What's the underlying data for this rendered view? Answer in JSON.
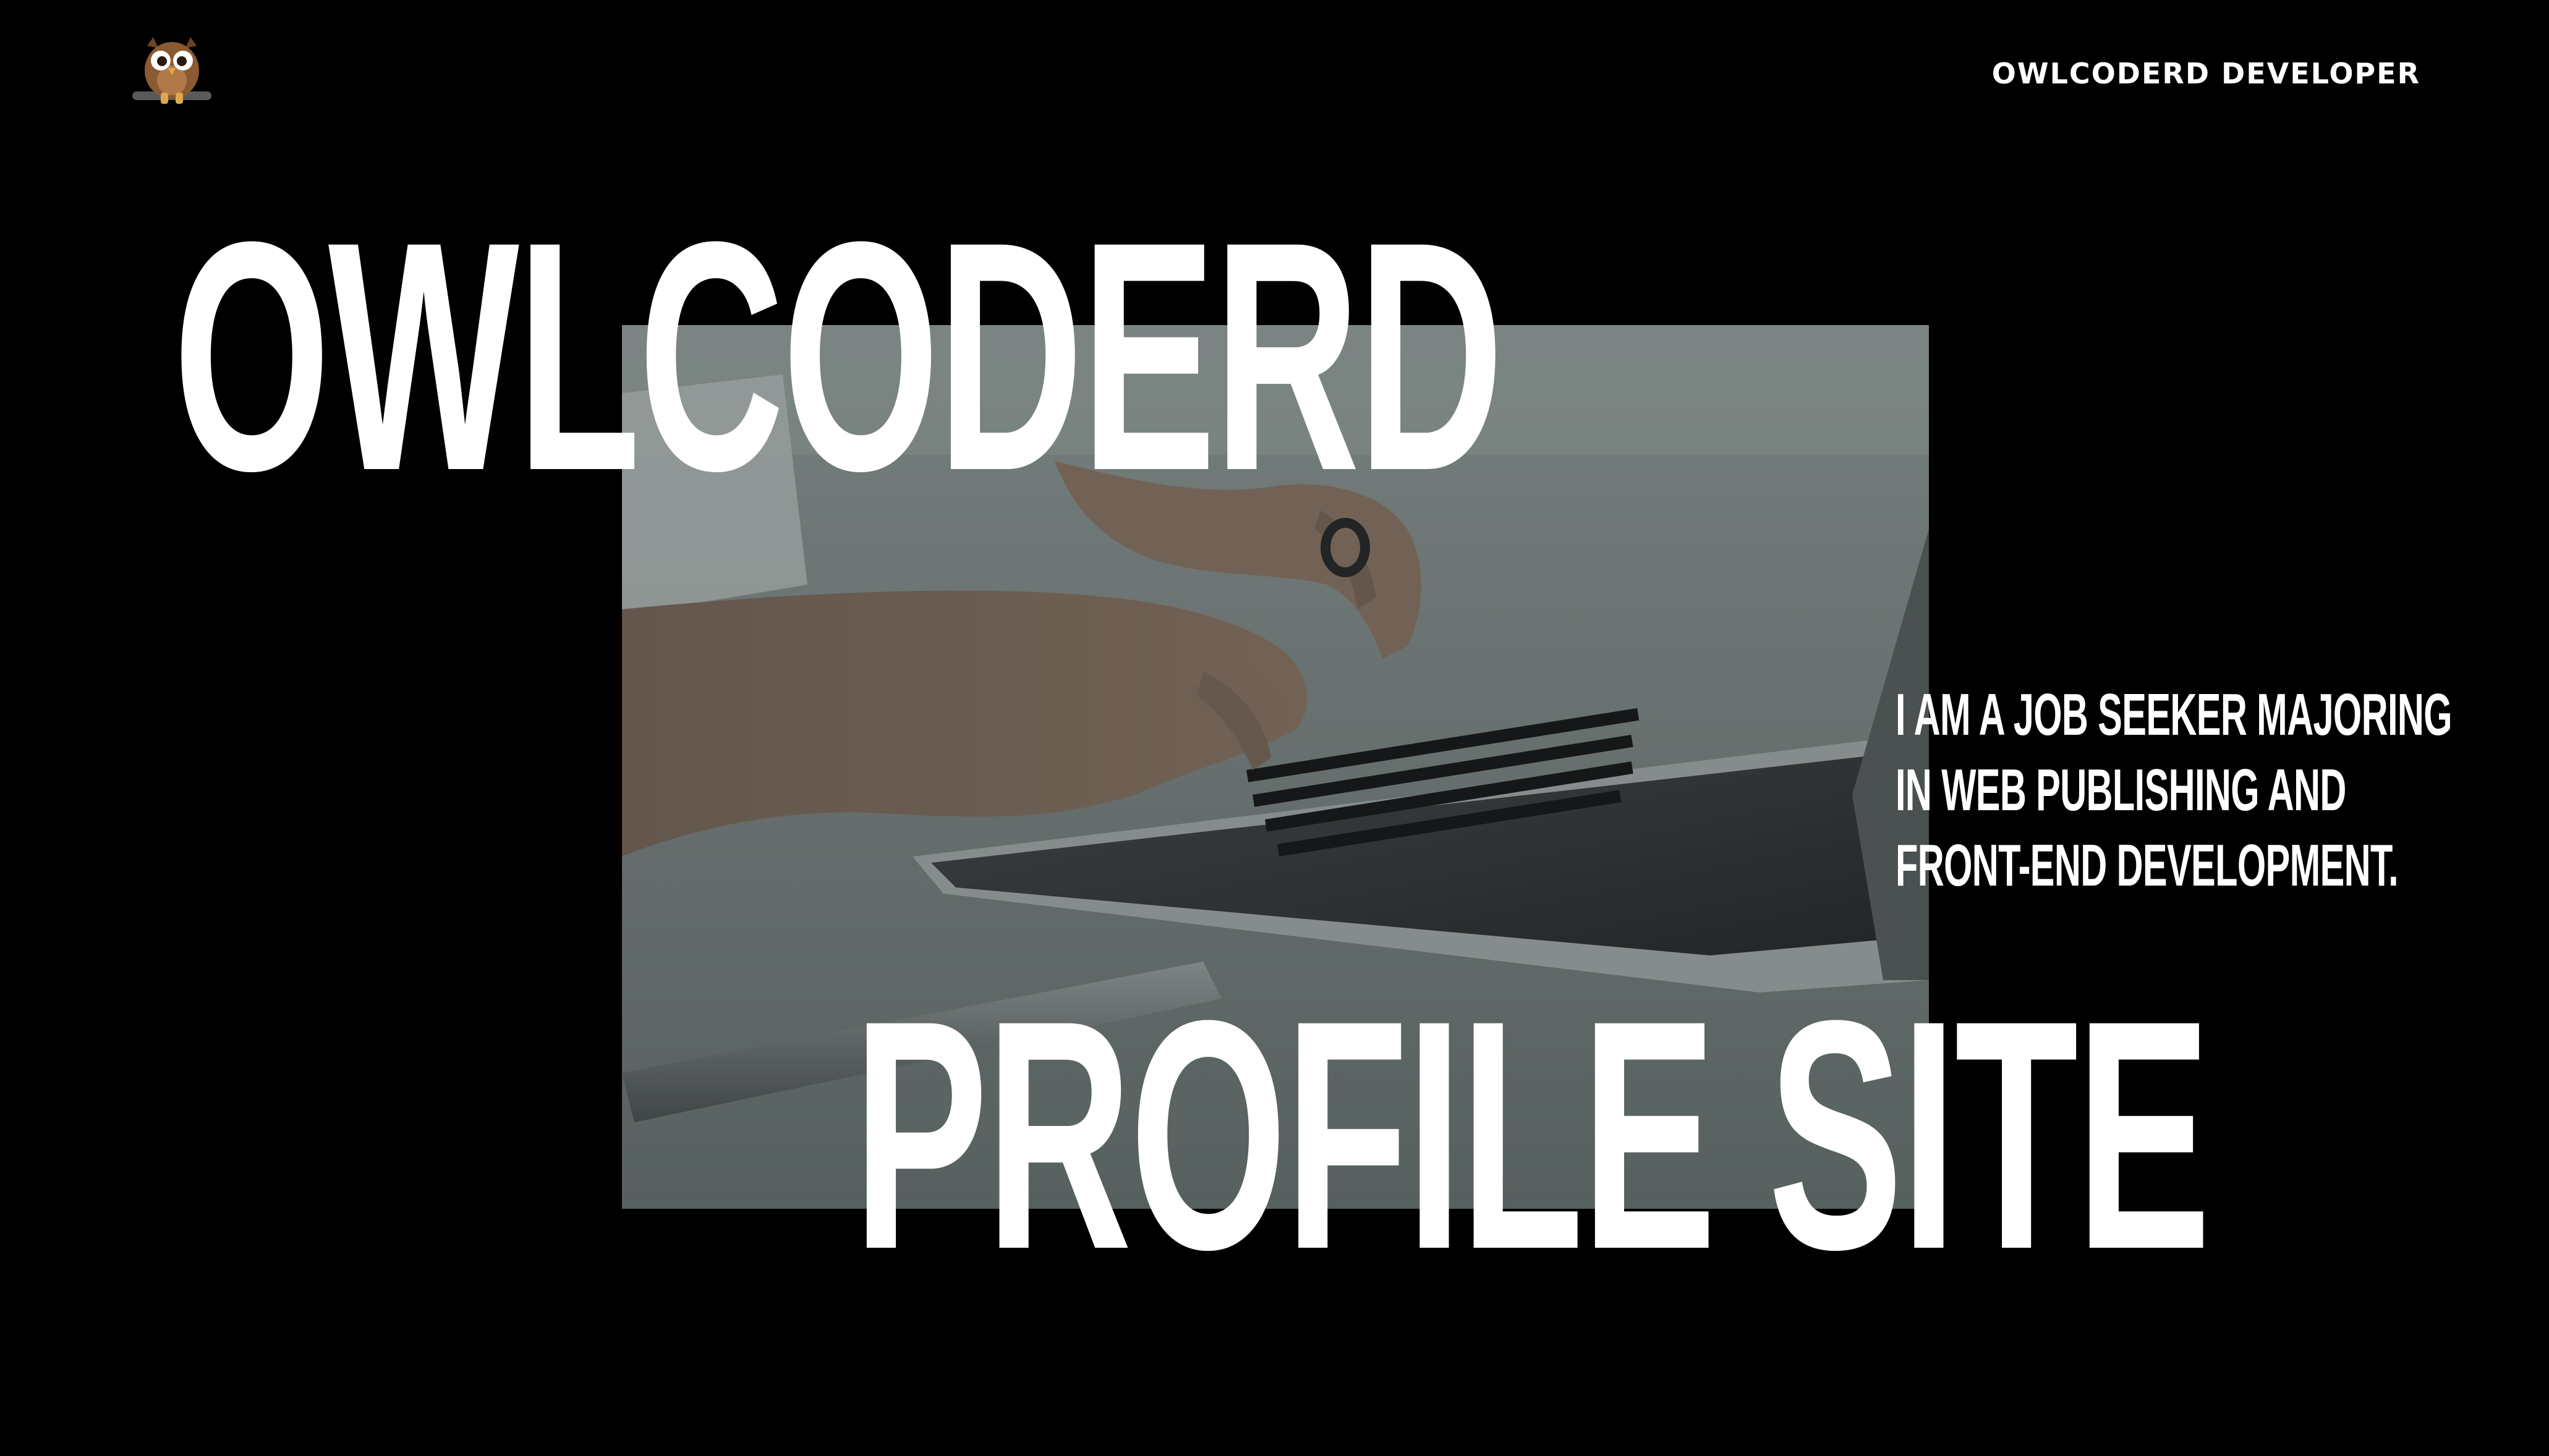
{
  "header": {
    "logo_icon": "owl-logo-icon",
    "site_label": "OWLCODERD DEVELOPER"
  },
  "hero": {
    "title_line_1": "OWLCODERD",
    "title_line_2": "PROFILE SITE",
    "image_icon": "hands-typing-on-laptop-photo",
    "tagline": [
      "I AM A JOB SEEKER MAJORING",
      "IN WEB PUBLISHING AND",
      "FRONT-END DEVELOPMENT."
    ]
  },
  "colors": {
    "background": "#000000",
    "text": "#ffffff",
    "owl_body": "#8a5a32",
    "owl_feet": "#e0a84a"
  }
}
